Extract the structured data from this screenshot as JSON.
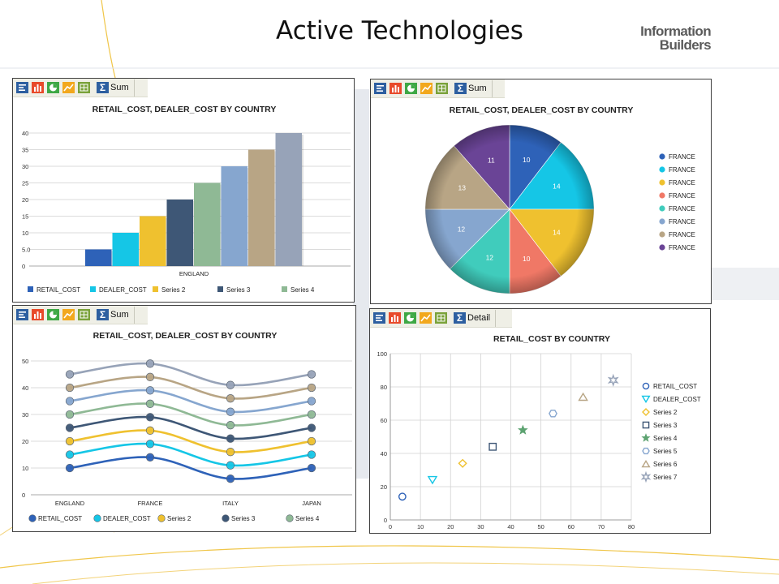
{
  "page": {
    "title": "Active Technologies"
  },
  "logo": {
    "line1": "Information",
    "line2": "Builders"
  },
  "toolbar": {
    "icons": [
      "report-icon",
      "bar-chart-icon",
      "pie-chart-icon",
      "line-chart-icon",
      "grid-icon"
    ],
    "sum_label": "Sum",
    "detail_label": "Detail"
  },
  "colors": {
    "s1": "#2e62b8",
    "s2": "#15c6e6",
    "s3": "#efc12f",
    "s4": "#3e5776",
    "s5": "#8fb995",
    "s6": "#86a6cf",
    "s7": "#b8a585",
    "s8": "#97a3b8",
    "pie_coral": "#f07866",
    "pie_teal": "#40ccbc",
    "pie_purple": "#6a4496"
  },
  "chart_data": [
    {
      "type": "bar",
      "title": "RETAIL_COST, DEALER_COST BY COUNTRY",
      "categories": [
        "ENGLAND"
      ],
      "series": [
        {
          "name": "RETAIL_COST",
          "values": [
            5
          ]
        },
        {
          "name": "DEALER_COST",
          "values": [
            10
          ]
        },
        {
          "name": "Series 2",
          "values": [
            15
          ]
        },
        {
          "name": "Series 3",
          "values": [
            20
          ]
        },
        {
          "name": "Series 4",
          "values": [
            25
          ]
        },
        {
          "values": [
            30
          ]
        },
        {
          "values": [
            35
          ]
        },
        {
          "values": [
            40
          ]
        }
      ],
      "yticks": [
        "0",
        "5.0",
        "10",
        "15",
        "20",
        "25",
        "30",
        "35",
        "40"
      ],
      "ylim": [
        0,
        40
      ],
      "legend": "bottom",
      "grid": true
    },
    {
      "type": "pie",
      "title": "RETAIL_COST, DEALER_COST BY COUNTRY",
      "values": [
        10,
        14,
        14,
        10,
        12,
        12,
        13,
        11
      ],
      "labels": [
        "FRANCE",
        "FRANCE",
        "FRANCE",
        "FRANCE",
        "FRANCE",
        "FRANCE",
        "FRANCE",
        "FRANCE"
      ],
      "legend": "right"
    },
    {
      "type": "line",
      "title": "RETAIL_COST, DEALER_COST BY COUNTRY",
      "categories": [
        "ENGLAND",
        "FRANCE",
        "ITALY",
        "JAPAN"
      ],
      "series": [
        {
          "name": "RETAIL_COST",
          "values": [
            10,
            14,
            6,
            10
          ]
        },
        {
          "name": "DEALER_COST",
          "values": [
            15,
            19,
            11,
            15
          ]
        },
        {
          "name": "Series 2",
          "values": [
            20,
            24,
            16,
            20
          ]
        },
        {
          "name": "Series 3",
          "values": [
            25,
            29,
            21,
            25
          ]
        },
        {
          "name": "Series 4",
          "values": [
            30,
            34,
            26,
            30
          ]
        },
        {
          "values": [
            35,
            39,
            31,
            35
          ]
        },
        {
          "values": [
            40,
            44,
            36,
            40
          ]
        },
        {
          "values": [
            45,
            49,
            41,
            45
          ]
        }
      ],
      "yticks": [
        "0",
        "10",
        "20",
        "30",
        "40",
        "50"
      ],
      "ylim": [
        0,
        50
      ],
      "legend": "bottom",
      "grid": true
    },
    {
      "type": "scatter",
      "title": "RETAIL_COST BY COUNTRY",
      "series": [
        {
          "name": "RETAIL_COST",
          "x": [
            4
          ],
          "y": [
            14
          ],
          "marker": "circle"
        },
        {
          "name": "DEALER_COST",
          "x": [
            14
          ],
          "y": [
            24
          ],
          "marker": "triangle-down"
        },
        {
          "name": "Series 2",
          "x": [
            24
          ],
          "y": [
            34
          ],
          "marker": "diamond"
        },
        {
          "name": "Series 3",
          "x": [
            34
          ],
          "y": [
            44
          ],
          "marker": "square"
        },
        {
          "name": "Series 4",
          "x": [
            44
          ],
          "y": [
            54
          ],
          "marker": "star"
        },
        {
          "name": "Series 5",
          "x": [
            54
          ],
          "y": [
            64
          ],
          "marker": "hexagon"
        },
        {
          "name": "Series 6",
          "x": [
            64
          ],
          "y": [
            74
          ],
          "marker": "triangle"
        },
        {
          "name": "Series 7",
          "x": [
            74
          ],
          "y": [
            84
          ],
          "marker": "star6"
        }
      ],
      "xticks": [
        "0",
        "10",
        "20",
        "30",
        "40",
        "50",
        "60",
        "70",
        "80"
      ],
      "yticks": [
        "0",
        "20",
        "40",
        "60",
        "80",
        "100"
      ],
      "xlim": [
        0,
        80
      ],
      "ylim": [
        0,
        100
      ],
      "legend": "right",
      "grid": true
    }
  ]
}
